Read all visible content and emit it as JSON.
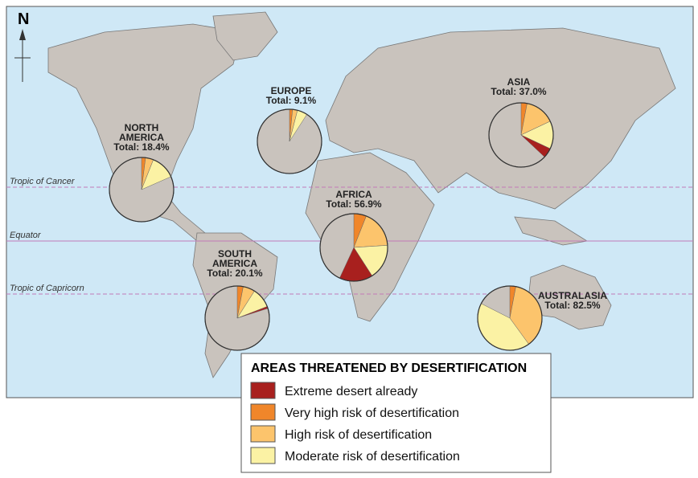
{
  "map": {
    "legend": {
      "title": "AREAS THREATENED BY DESERTIFICATION",
      "items": [
        {
          "name": "Extreme desert already",
          "color": "#a8201e"
        },
        {
          "name": "Very high risk of desertification",
          "color": "#f0862a"
        },
        {
          "name": "High risk of desertification",
          "color": "#fcc46c"
        },
        {
          "name": "Moderate risk of desertification",
          "color": "#fbf2a4"
        }
      ]
    },
    "latitudes": [
      "Tropic of Cancer",
      "Equator",
      "Tropic of Capricorn"
    ],
    "north": "N",
    "regions": [
      {
        "name": [
          "NORTH",
          "AMERICA"
        ],
        "total_label": "Total: 18.4%",
        "values": [
          0,
          2,
          4,
          12.4
        ]
      },
      {
        "name": [
          "EUROPE"
        ],
        "total_label": "Total: 9.1%",
        "values": [
          0,
          1.5,
          2.5,
          5.1
        ]
      },
      {
        "name": [
          "ASIA"
        ],
        "total_label": "Total: 37.0%",
        "values": [
          5,
          3,
          15,
          14
        ]
      },
      {
        "name": [
          "AFRICA"
        ],
        "total_label": "Total: 56.9%",
        "values": [
          16,
          6,
          18,
          16.9
        ]
      },
      {
        "name": [
          "SOUTH",
          "AMERICA"
        ],
        "total_label": "Total: 20.1%",
        "values": [
          1,
          3,
          6,
          10.1
        ]
      },
      {
        "name": [
          "AUSTRALASIA"
        ],
        "total_label": "Total: 82.5%",
        "values": [
          0,
          3,
          37,
          42.5
        ]
      }
    ]
  }
}
